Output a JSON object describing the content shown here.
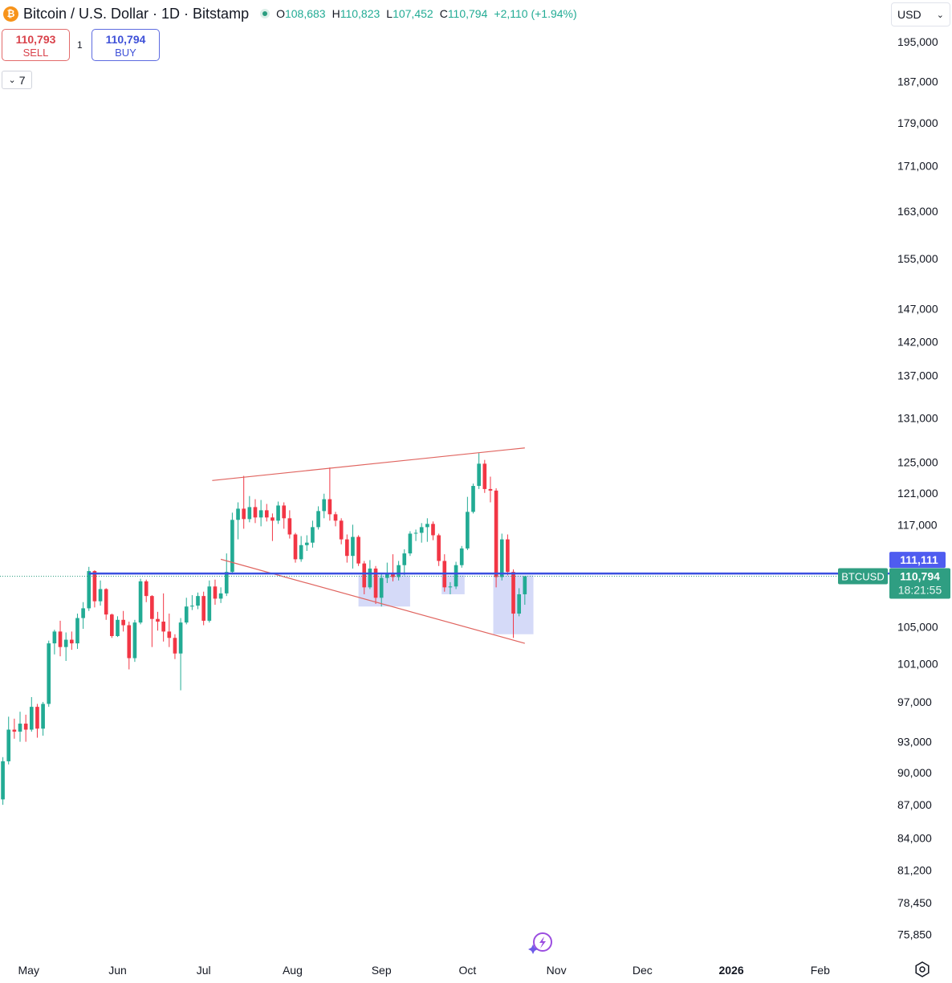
{
  "header": {
    "coin_icon": "bitcoin-icon",
    "coin_glyph": "₿",
    "title": "Bitcoin / U.S. Dollar · 1D · Bitstamp",
    "open_key": "O",
    "open": "108,683",
    "high_key": "H",
    "high": "110,823",
    "low_key": "L",
    "low": "107,452",
    "close_key": "C",
    "close": "110,794",
    "change": "+2,110 (+1.94%)"
  },
  "trade": {
    "sell_price": "110,793",
    "sell_label": "SELL",
    "spread": "1",
    "buy_price": "110,794",
    "buy_label": "BUY"
  },
  "indicators": {
    "count": "7",
    "chevron": "chevron-down-icon"
  },
  "currency": {
    "value": "USD"
  },
  "colors": {
    "up": "#22ab94",
    "down": "#f23645",
    "level_line": "#3a4fe0",
    "trend_line": "#e0645f",
    "zone": "#c7cdf6",
    "price_tag": "#2f9e82",
    "level_tag": "#4f5cf0"
  },
  "chart_data": {
    "type": "candlestick",
    "symbol": "BTCUSD",
    "price_axis_ticks": [
      "195,000",
      "187,000",
      "179,000",
      "171,000",
      "163,000",
      "155,000",
      "147,000",
      "142,000",
      "137,000",
      "131,000",
      "125,000",
      "121,000",
      "117,000",
      "105,000",
      "101,000",
      "97,000",
      "93,000",
      "90,000",
      "87,000",
      "84,000",
      "81,200",
      "78,450",
      "75,850"
    ],
    "time_axis": [
      {
        "label": "May",
        "date": "2025-05-01"
      },
      {
        "label": "Jun",
        "date": "2025-06-01"
      },
      {
        "label": "Jul",
        "date": "2025-07-01"
      },
      {
        "label": "Aug",
        "date": "2025-08-01"
      },
      {
        "label": "Sep",
        "date": "2025-09-01"
      },
      {
        "label": "Oct",
        "date": "2025-10-01"
      },
      {
        "label": "Nov",
        "date": "2025-11-01"
      },
      {
        "label": "Dec",
        "date": "2025-12-01"
      },
      {
        "label": "2026",
        "date": "2026-01-01",
        "bold": true
      },
      {
        "label": "Feb",
        "date": "2026-02-01"
      }
    ],
    "scale": "log",
    "y_range": [
      74800,
      198000
    ],
    "x_range": [
      "2025-04-21",
      "2026-02-24"
    ],
    "horizontal_level": {
      "price": 111111,
      "start": "2025-05-22",
      "label": "111,111"
    },
    "last_price": {
      "price": 110794,
      "label": "110,794",
      "countdown": "18:21:55",
      "symbol_tag": "BTCUSD"
    },
    "trend_lines": [
      {
        "from": {
          "date": "2025-07-04",
          "price": 122600
        },
        "to": {
          "date": "2025-10-21",
          "price": 126900
        }
      },
      {
        "from": {
          "date": "2025-07-07",
          "price": 112800
        },
        "to": {
          "date": "2025-10-21",
          "price": 103200
        }
      }
    ],
    "zones": [
      {
        "from": "2025-08-24",
        "to": "2025-09-11",
        "high": 110900,
        "low": 107300
      },
      {
        "from": "2025-09-22",
        "to": "2025-09-30",
        "high": 110900,
        "low": 108700
      },
      {
        "from": "2025-10-10",
        "to": "2025-10-24",
        "high": 110900,
        "low": 104200
      }
    ],
    "candles": [
      {
        "d": "2025-04-22",
        "o": 87500,
        "h": 91500,
        "l": 87000,
        "c": 91100
      },
      {
        "d": "2025-04-24",
        "o": 91100,
        "h": 95500,
        "l": 90800,
        "c": 94200
      },
      {
        "d": "2025-04-26",
        "o": 94200,
        "h": 95300,
        "l": 93300,
        "c": 94000
      },
      {
        "d": "2025-04-28",
        "o": 94000,
        "h": 96000,
        "l": 93000,
        "c": 94800
      },
      {
        "d": "2025-04-30",
        "o": 94800,
        "h": 95700,
        "l": 93000,
        "c": 94200
      },
      {
        "d": "2025-05-02",
        "o": 94200,
        "h": 97500,
        "l": 94000,
        "c": 96500
      },
      {
        "d": "2025-05-04",
        "o": 96500,
        "h": 96800,
        "l": 93400,
        "c": 94300
      },
      {
        "d": "2025-05-06",
        "o": 94300,
        "h": 97000,
        "l": 93600,
        "c": 96800
      },
      {
        "d": "2025-05-08",
        "o": 96800,
        "h": 103500,
        "l": 96500,
        "c": 103200
      },
      {
        "d": "2025-05-10",
        "o": 103200,
        "h": 104700,
        "l": 102000,
        "c": 104500
      },
      {
        "d": "2025-05-12",
        "o": 104500,
        "h": 105700,
        "l": 101800,
        "c": 102800
      },
      {
        "d": "2025-05-14",
        "o": 102800,
        "h": 104400,
        "l": 101300,
        "c": 103600
      },
      {
        "d": "2025-05-16",
        "o": 103600,
        "h": 104500,
        "l": 102500,
        "c": 103200
      },
      {
        "d": "2025-05-18",
        "o": 103200,
        "h": 106500,
        "l": 102600,
        "c": 106000
      },
      {
        "d": "2025-05-20",
        "o": 106000,
        "h": 107800,
        "l": 104800,
        "c": 107100
      },
      {
        "d": "2025-05-22",
        "o": 107100,
        "h": 111900,
        "l": 106800,
        "c": 111400
      },
      {
        "d": "2025-05-24",
        "o": 111400,
        "h": 111500,
        "l": 107200,
        "c": 107900
      },
      {
        "d": "2025-05-26",
        "o": 107900,
        "h": 110300,
        "l": 107400,
        "c": 109300
      },
      {
        "d": "2025-05-28",
        "o": 109300,
        "h": 109400,
        "l": 105800,
        "c": 106400
      },
      {
        "d": "2025-05-30",
        "o": 106400,
        "h": 106500,
        "l": 103800,
        "c": 104000
      },
      {
        "d": "2025-06-01",
        "o": 104000,
        "h": 106200,
        "l": 103900,
        "c": 105800
      },
      {
        "d": "2025-06-03",
        "o": 105800,
        "h": 106800,
        "l": 104500,
        "c": 105200
      },
      {
        "d": "2025-06-05",
        "o": 105200,
        "h": 105600,
        "l": 100400,
        "c": 101600
      },
      {
        "d": "2025-06-07",
        "o": 101600,
        "h": 105800,
        "l": 101200,
        "c": 105500
      },
      {
        "d": "2025-06-09",
        "o": 105500,
        "h": 110500,
        "l": 105300,
        "c": 110200
      },
      {
        "d": "2025-06-11",
        "o": 110200,
        "h": 110400,
        "l": 107800,
        "c": 108500
      },
      {
        "d": "2025-06-13",
        "o": 108500,
        "h": 108600,
        "l": 102800,
        "c": 105900
      },
      {
        "d": "2025-06-15",
        "o": 105900,
        "h": 106700,
        "l": 104600,
        "c": 105600
      },
      {
        "d": "2025-06-17",
        "o": 105600,
        "h": 108800,
        "l": 103400,
        "c": 104500
      },
      {
        "d": "2025-06-19",
        "o": 104500,
        "h": 106500,
        "l": 102800,
        "c": 103800
      },
      {
        "d": "2025-06-21",
        "o": 103800,
        "h": 104200,
        "l": 101500,
        "c": 102100
      },
      {
        "d": "2025-06-23",
        "o": 102100,
        "h": 106000,
        "l": 98200,
        "c": 105500
      },
      {
        "d": "2025-06-25",
        "o": 105500,
        "h": 108300,
        "l": 105300,
        "c": 107300
      },
      {
        "d": "2025-06-27",
        "o": 107300,
        "h": 108600,
        "l": 106900,
        "c": 107400
      },
      {
        "d": "2025-06-29",
        "o": 107400,
        "h": 108900,
        "l": 107000,
        "c": 108500
      },
      {
        "d": "2025-07-01",
        "o": 108500,
        "h": 109000,
        "l": 105200,
        "c": 105700
      },
      {
        "d": "2025-07-03",
        "o": 105700,
        "h": 110300,
        "l": 105500,
        "c": 109600
      },
      {
        "d": "2025-07-05",
        "o": 109600,
        "h": 110400,
        "l": 107500,
        "c": 108200
      },
      {
        "d": "2025-07-07",
        "o": 108200,
        "h": 109500,
        "l": 107700,
        "c": 108800
      },
      {
        "d": "2025-07-09",
        "o": 108800,
        "h": 113500,
        "l": 108500,
        "c": 111300
      },
      {
        "d": "2025-07-11",
        "o": 111300,
        "h": 118500,
        "l": 111000,
        "c": 117600
      },
      {
        "d": "2025-07-13",
        "o": 117600,
        "h": 119800,
        "l": 115200,
        "c": 119000
      },
      {
        "d": "2025-07-15",
        "o": 119000,
        "h": 123200,
        "l": 116500,
        "c": 117700
      },
      {
        "d": "2025-07-17",
        "o": 117700,
        "h": 120600,
        "l": 117300,
        "c": 119200
      },
      {
        "d": "2025-07-19",
        "o": 119200,
        "h": 120200,
        "l": 117200,
        "c": 117900
      },
      {
        "d": "2025-07-21",
        "o": 117900,
        "h": 120100,
        "l": 116800,
        "c": 118800
      },
      {
        "d": "2025-07-23",
        "o": 118800,
        "h": 119600,
        "l": 117400,
        "c": 117900
      },
      {
        "d": "2025-07-25",
        "o": 117900,
        "h": 118400,
        "l": 115000,
        "c": 117500
      },
      {
        "d": "2025-07-27",
        "o": 117500,
        "h": 119900,
        "l": 117100,
        "c": 119400
      },
      {
        "d": "2025-07-29",
        "o": 119400,
        "h": 119800,
        "l": 116500,
        "c": 117800
      },
      {
        "d": "2025-07-31",
        "o": 117800,
        "h": 118800,
        "l": 115300,
        "c": 115800
      },
      {
        "d": "2025-08-02",
        "o": 115800,
        "h": 116000,
        "l": 112400,
        "c": 112800
      },
      {
        "d": "2025-08-04",
        "o": 112800,
        "h": 115600,
        "l": 112500,
        "c": 114500
      },
      {
        "d": "2025-08-06",
        "o": 114500,
        "h": 115700,
        "l": 113800,
        "c": 114800
      },
      {
        "d": "2025-08-08",
        "o": 114800,
        "h": 117500,
        "l": 114200,
        "c": 116700
      },
      {
        "d": "2025-08-10",
        "o": 116700,
        "h": 119300,
        "l": 116400,
        "c": 118700
      },
      {
        "d": "2025-08-12",
        "o": 118700,
        "h": 120900,
        "l": 117800,
        "c": 120200
      },
      {
        "d": "2025-08-14",
        "o": 120200,
        "h": 124300,
        "l": 117500,
        "c": 118300
      },
      {
        "d": "2025-08-16",
        "o": 118300,
        "h": 118600,
        "l": 116800,
        "c": 117500
      },
      {
        "d": "2025-08-18",
        "o": 117500,
        "h": 117800,
        "l": 114600,
        "c": 115200
      },
      {
        "d": "2025-08-20",
        "o": 115200,
        "h": 115800,
        "l": 112400,
        "c": 113200
      },
      {
        "d": "2025-08-22",
        "o": 113200,
        "h": 117000,
        "l": 111700,
        "c": 115500
      },
      {
        "d": "2025-08-24",
        "o": 115500,
        "h": 115700,
        "l": 112000,
        "c": 112300
      },
      {
        "d": "2025-08-26",
        "o": 112300,
        "h": 112600,
        "l": 108700,
        "c": 109500
      },
      {
        "d": "2025-08-28",
        "o": 109500,
        "h": 112700,
        "l": 109300,
        "c": 111700
      },
      {
        "d": "2025-08-30",
        "o": 111700,
        "h": 112000,
        "l": 107600,
        "c": 108300
      },
      {
        "d": "2025-09-01",
        "o": 108300,
        "h": 111200,
        "l": 107300,
        "c": 110600
      },
      {
        "d": "2025-09-03",
        "o": 110600,
        "h": 112400,
        "l": 110000,
        "c": 111200
      },
      {
        "d": "2025-09-05",
        "o": 111200,
        "h": 113400,
        "l": 110200,
        "c": 110700
      },
      {
        "d": "2025-09-07",
        "o": 110700,
        "h": 112600,
        "l": 110300,
        "c": 112100
      },
      {
        "d": "2025-09-09",
        "o": 112100,
        "h": 114000,
        "l": 110900,
        "c": 113500
      },
      {
        "d": "2025-09-11",
        "o": 113500,
        "h": 116200,
        "l": 113200,
        "c": 115900
      },
      {
        "d": "2025-09-13",
        "o": 115900,
        "h": 116400,
        "l": 115000,
        "c": 116000
      },
      {
        "d": "2025-09-15",
        "o": 116000,
        "h": 117200,
        "l": 114800,
        "c": 116700
      },
      {
        "d": "2025-09-17",
        "o": 116700,
        "h": 117800,
        "l": 114900,
        "c": 117100
      },
      {
        "d": "2025-09-19",
        "o": 117100,
        "h": 117400,
        "l": 115100,
        "c": 115700
      },
      {
        "d": "2025-09-21",
        "o": 115700,
        "h": 115900,
        "l": 112000,
        "c": 112600
      },
      {
        "d": "2025-09-23",
        "o": 112600,
        "h": 113400,
        "l": 109000,
        "c": 109500
      },
      {
        "d": "2025-09-25",
        "o": 109500,
        "h": 110100,
        "l": 108700,
        "c": 109600
      },
      {
        "d": "2025-09-27",
        "o": 109600,
        "h": 112500,
        "l": 109300,
        "c": 112100
      },
      {
        "d": "2025-09-29",
        "o": 112100,
        "h": 114400,
        "l": 111800,
        "c": 114100
      },
      {
        "d": "2025-10-01",
        "o": 114100,
        "h": 120500,
        "l": 113900,
        "c": 118600
      },
      {
        "d": "2025-10-03",
        "o": 118600,
        "h": 122200,
        "l": 118400,
        "c": 121900
      },
      {
        "d": "2025-10-05",
        "o": 121900,
        "h": 126200,
        "l": 121500,
        "c": 124800
      },
      {
        "d": "2025-10-07",
        "o": 124800,
        "h": 125300,
        "l": 121000,
        "c": 121500
      },
      {
        "d": "2025-10-09",
        "o": 121500,
        "h": 123100,
        "l": 119800,
        "c": 121300
      },
      {
        "d": "2025-10-11",
        "o": 121300,
        "h": 121600,
        "l": 109500,
        "c": 110700
      },
      {
        "d": "2025-10-13",
        "o": 110700,
        "h": 115900,
        "l": 110300,
        "c": 115200
      },
      {
        "d": "2025-10-15",
        "o": 115200,
        "h": 115800,
        "l": 110900,
        "c": 111300
      },
      {
        "d": "2025-10-17",
        "o": 111300,
        "h": 111600,
        "l": 103800,
        "c": 106500
      },
      {
        "d": "2025-10-19",
        "o": 106500,
        "h": 109400,
        "l": 106200,
        "c": 108700
      },
      {
        "d": "2025-10-21",
        "o": 108700,
        "h": 110800,
        "l": 107500,
        "c": 110794
      }
    ]
  }
}
